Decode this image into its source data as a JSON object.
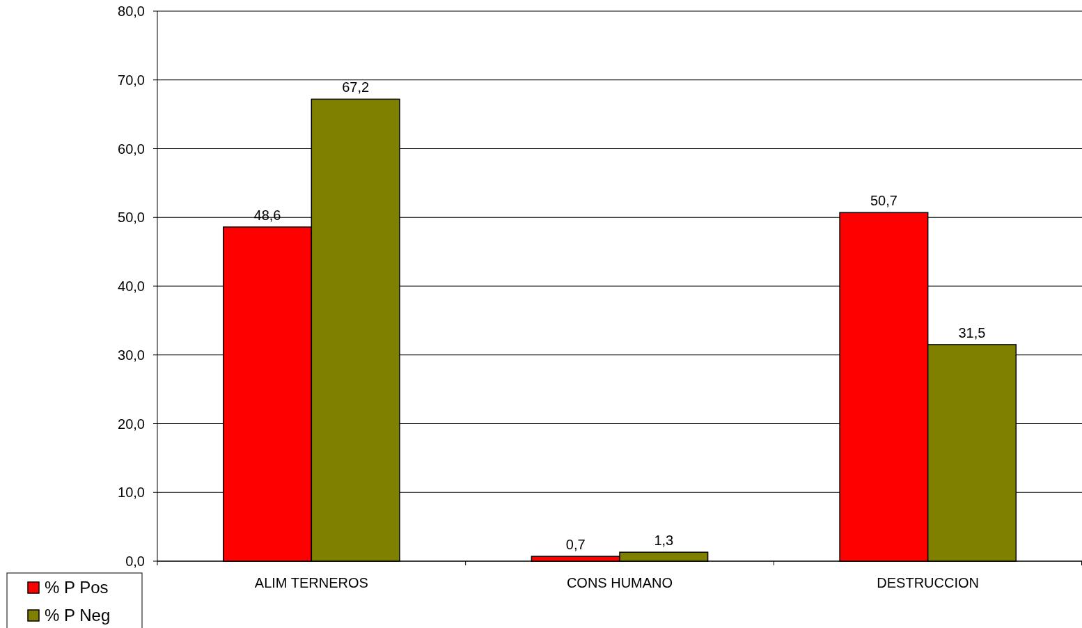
{
  "chart_data": {
    "type": "bar",
    "categories": [
      "ALIM TERNEROS",
      "CONS HUMANO",
      "DESTRUCCION"
    ],
    "series": [
      {
        "name": "% P Pos",
        "color": "#ff0000",
        "values": [
          48.6,
          0.7,
          50.7
        ],
        "value_labels": [
          "48,6",
          "0,7",
          "50,7"
        ]
      },
      {
        "name": "% P Neg",
        "color": "#808000",
        "values": [
          67.2,
          1.3,
          31.5
        ],
        "value_labels": [
          "67,2",
          "1,3",
          "31,5"
        ]
      }
    ],
    "ylim": [
      0,
      80
    ],
    "yticks": [
      {
        "value": 0,
        "label": "0,0"
      },
      {
        "value": 10,
        "label": "10,0"
      },
      {
        "value": 20,
        "label": "20,0"
      },
      {
        "value": 30,
        "label": "30,0"
      },
      {
        "value": 40,
        "label": "40,0"
      },
      {
        "value": 50,
        "label": "50,0"
      },
      {
        "value": 60,
        "label": "60,0"
      },
      {
        "value": 70,
        "label": "70,0"
      },
      {
        "value": 80,
        "label": "80,0"
      }
    ],
    "grid": "y",
    "legend": "bottom left"
  }
}
